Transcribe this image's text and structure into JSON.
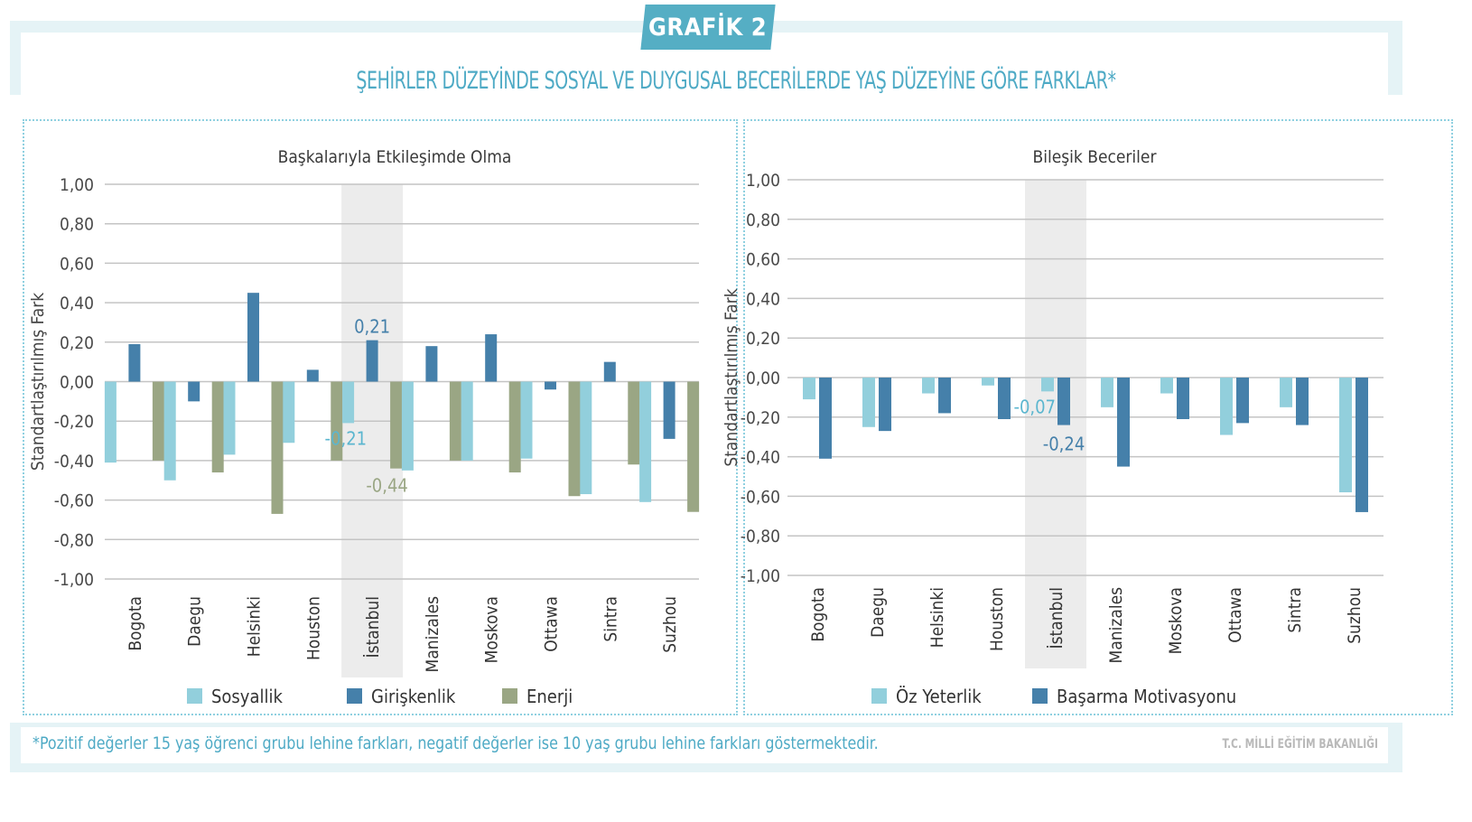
{
  "badge": "GRAFİK 2",
  "title": "ŞEHİRLER DÜZEYİNDE SOSYAL VE DUYGUSAL BECERİLERDE YAŞ DÜZEYİNE GÖRE FARKLAR*",
  "footnote": "*Pozitif değerler 15 yaş öğrenci grubu lehine farkları, negatif değerler ise 10 yaş grubu lehine farkları göstermektedir.",
  "source": "T.C. MİLLİ EĞİTİM BAKANLIĞI",
  "colors": {
    "sosyallik": "#92cfdc",
    "giriskenlik": "#4580aa",
    "enerji": "#9aa684",
    "highlight_band": "#ececec",
    "accent": "#55aec4"
  },
  "chart_data": [
    {
      "type": "bar",
      "title": "Başkalarıyla Etkileşimde Olma",
      "ylabel": "Standartlaştırılmış Fark",
      "xlabel": "",
      "ylim": [
        -1.0,
        1.0
      ],
      "yticks": [
        "1,00",
        "0,80",
        "0,60",
        "0,40",
        "0,20",
        "0,00",
        "-0,20",
        "-0,40",
        "-0,60",
        "-0,80",
        "-1,00"
      ],
      "ytick_values": [
        1.0,
        0.8,
        0.6,
        0.4,
        0.2,
        0.0,
        -0.2,
        -0.4,
        -0.6,
        -0.8,
        -1.0
      ],
      "grid": true,
      "legend_position": "bottom",
      "highlight_category": "İstanbul",
      "categories": [
        "Bogota",
        "Daegu",
        "Helsinki",
        "Houston",
        "İstanbul",
        "Manizales",
        "Moskova",
        "Ottawa",
        "Sintra",
        "Suzhou"
      ],
      "series": [
        {
          "name": "Sosyallik",
          "color": "#92cfdc",
          "values": [
            -0.41,
            -0.5,
            -0.37,
            -0.31,
            -0.21,
            -0.45,
            -0.4,
            -0.39,
            -0.57,
            -0.61
          ]
        },
        {
          "name": "Girişkenlik",
          "color": "#4580aa",
          "values": [
            0.19,
            -0.1,
            0.45,
            0.06,
            0.21,
            0.18,
            0.24,
            -0.04,
            0.1,
            -0.29
          ]
        },
        {
          "name": "Enerji",
          "color": "#9aa684",
          "values": [
            -0.4,
            -0.46,
            -0.67,
            -0.4,
            -0.44,
            -0.4,
            -0.46,
            -0.58,
            -0.42,
            -0.66
          ]
        }
      ],
      "annotations": [
        {
          "category": "İstanbul",
          "series": "Girişkenlik",
          "text": "0,21"
        },
        {
          "category": "İstanbul",
          "series": "Sosyallik",
          "text": "-0,21"
        },
        {
          "category": "İstanbul",
          "series": "Enerji",
          "text": "-0,44"
        }
      ]
    },
    {
      "type": "bar",
      "title": "Bileşik Beceriler",
      "ylabel": "Standartlaştırılmış Fark",
      "xlabel": "",
      "ylim": [
        -1.0,
        1.0
      ],
      "yticks": [
        "1,00",
        "0,80",
        "0,60",
        "0,40",
        "0,20",
        "0,00",
        "-0,20",
        "-0,40",
        "-0,60",
        "-0,80",
        "-1,00"
      ],
      "ytick_values": [
        1.0,
        0.8,
        0.6,
        0.4,
        0.2,
        0.0,
        -0.2,
        -0.4,
        -0.6,
        -0.8,
        -1.0
      ],
      "grid": true,
      "legend_position": "bottom",
      "highlight_category": "İstanbul",
      "categories": [
        "Bogota",
        "Daegu",
        "Helsinki",
        "Houston",
        "İstanbul",
        "Manizales",
        "Moskova",
        "Ottawa",
        "Sintra",
        "Suzhou"
      ],
      "series": [
        {
          "name": "Öz Yeterlik",
          "color": "#92cfdc",
          "values": [
            -0.11,
            -0.25,
            -0.08,
            -0.04,
            -0.07,
            -0.15,
            -0.08,
            -0.29,
            -0.15,
            -0.58
          ]
        },
        {
          "name": "Başarma Motivasyonu",
          "color": "#4580aa",
          "values": [
            -0.41,
            -0.27,
            -0.18,
            -0.21,
            -0.24,
            -0.45,
            -0.21,
            -0.23,
            -0.24,
            -0.68
          ]
        }
      ],
      "annotations": [
        {
          "category": "İstanbul",
          "series": "Öz Yeterlik",
          "text": "-0,07"
        },
        {
          "category": "İstanbul",
          "series": "Başarma Motivasyonu",
          "text": "-0,24"
        }
      ]
    }
  ]
}
